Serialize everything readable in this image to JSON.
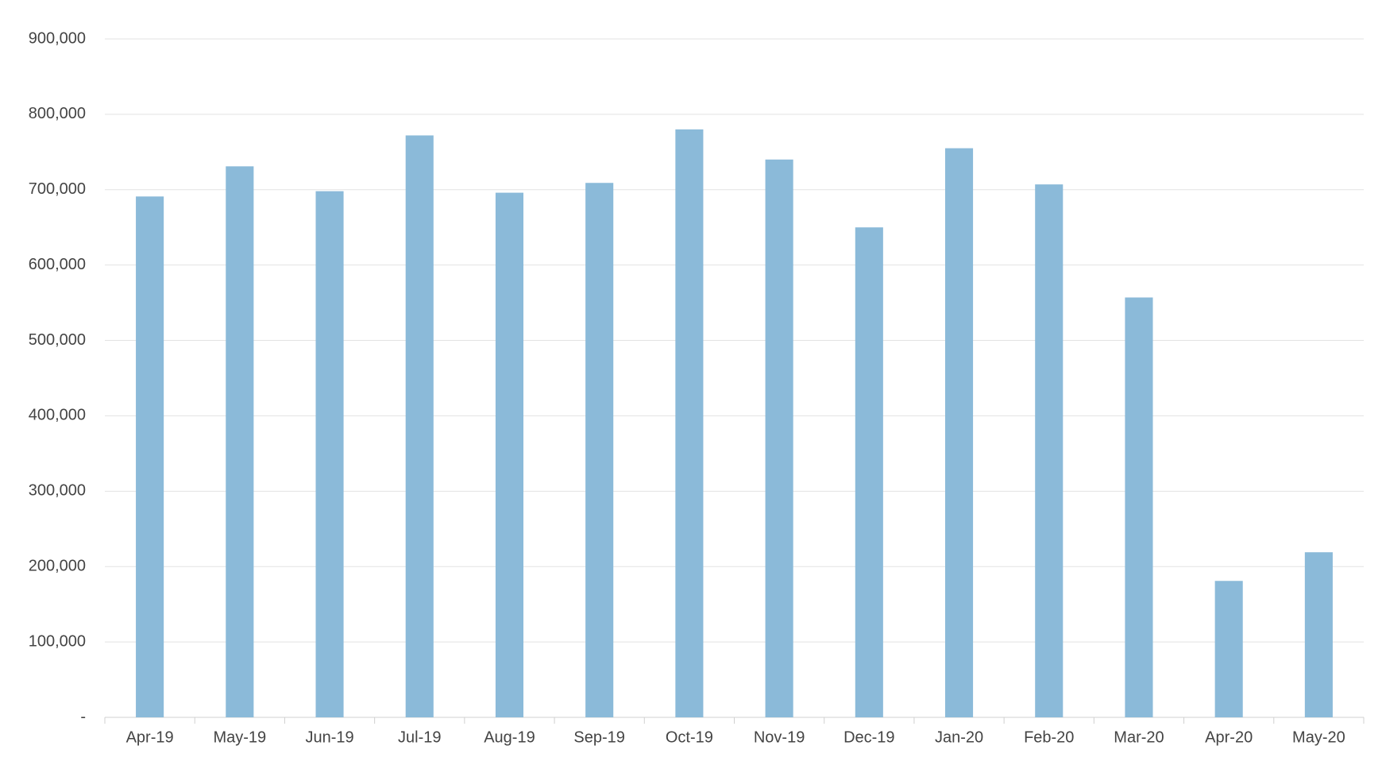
{
  "chart_data": {
    "type": "bar",
    "categories": [
      "Apr-19",
      "May-19",
      "Jun-19",
      "Jul-19",
      "Aug-19",
      "Sep-19",
      "Oct-19",
      "Nov-19",
      "Dec-19",
      "Jan-20",
      "Feb-20",
      "Mar-20",
      "Apr-20",
      "May-20"
    ],
    "values": [
      691000,
      731000,
      698000,
      772000,
      696000,
      709000,
      780000,
      740000,
      650000,
      755000,
      707000,
      557000,
      181000,
      219000
    ],
    "color": "#8bbad9",
    "ylim": [
      0,
      900000
    ],
    "yticks": [
      {
        "value": 0,
        "label": "-"
      },
      {
        "value": 100000,
        "label": "100,000"
      },
      {
        "value": 200000,
        "label": "200,000"
      },
      {
        "value": 300000,
        "label": "300,000"
      },
      {
        "value": 400000,
        "label": "400,000"
      },
      {
        "value": 500000,
        "label": "500,000"
      },
      {
        "value": 600000,
        "label": "600,000"
      },
      {
        "value": 700000,
        "label": "700,000"
      },
      {
        "value": 800000,
        "label": "800,000"
      },
      {
        "value": 900000,
        "label": "900,000"
      }
    ],
    "grid": true
  }
}
